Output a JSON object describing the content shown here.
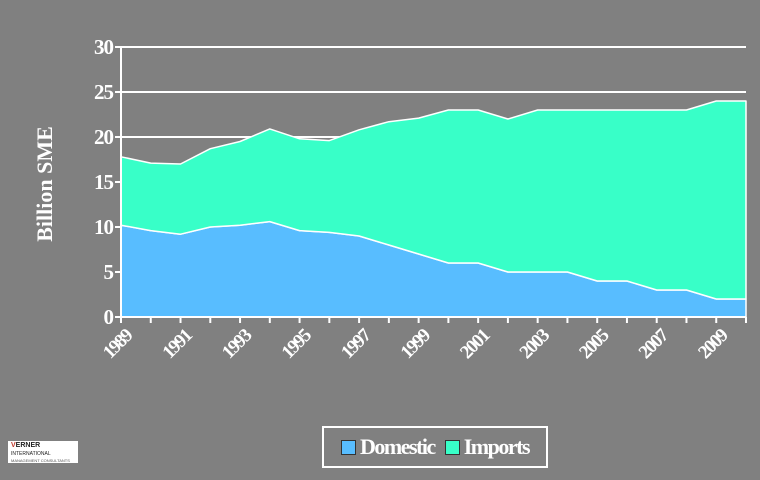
{
  "chart_data": {
    "type": "area",
    "stacked": true,
    "title": "",
    "xlabel": "",
    "ylabel": "Billion SME",
    "ylim": [
      0,
      30
    ],
    "yticks": [
      "0",
      "5",
      "10",
      "15",
      "20",
      "25",
      "30"
    ],
    "xlim": [
      1989,
      2010
    ],
    "xticks": [
      "1989",
      "1991",
      "1993",
      "1995",
      "1997",
      "1999",
      "2001",
      "2003",
      "2005",
      "2007",
      "2009"
    ],
    "x": [
      1989,
      1990,
      1991,
      1992,
      1993,
      1994,
      1995,
      1996,
      1997,
      1998,
      1999,
      2000,
      2001,
      2002,
      2003,
      2004,
      2005,
      2006,
      2007,
      2008,
      2009,
      2010
    ],
    "series": [
      {
        "name": "Domestic",
        "color": "#58bdff",
        "values": [
          10.2,
          9.6,
          9.2,
          10.0,
          10.2,
          10.6,
          9.6,
          9.4,
          9.0,
          8.0,
          7.0,
          6.0,
          6.0,
          5.0,
          5.0,
          5.0,
          4.0,
          4.0,
          3.0,
          3.0,
          2.0,
          2.0
        ]
      },
      {
        "name": "Imports",
        "color": "#38ffc8",
        "values": [
          7.6,
          7.5,
          7.8,
          8.7,
          9.3,
          10.3,
          10.2,
          10.2,
          11.8,
          13.7,
          15.1,
          17.0,
          17.0,
          17.0,
          18.0,
          18.0,
          19.0,
          19.0,
          20.0,
          20.0,
          22.0,
          22.0
        ]
      }
    ],
    "gridlines": [
      20,
      25,
      30
    ],
    "legend_position": "bottom-center"
  },
  "logo": {
    "name": "ERNER",
    "initial": "V",
    "line2": "INTERNATIONAL",
    "line3": "MANAGEMENT CONSULTANTS"
  }
}
